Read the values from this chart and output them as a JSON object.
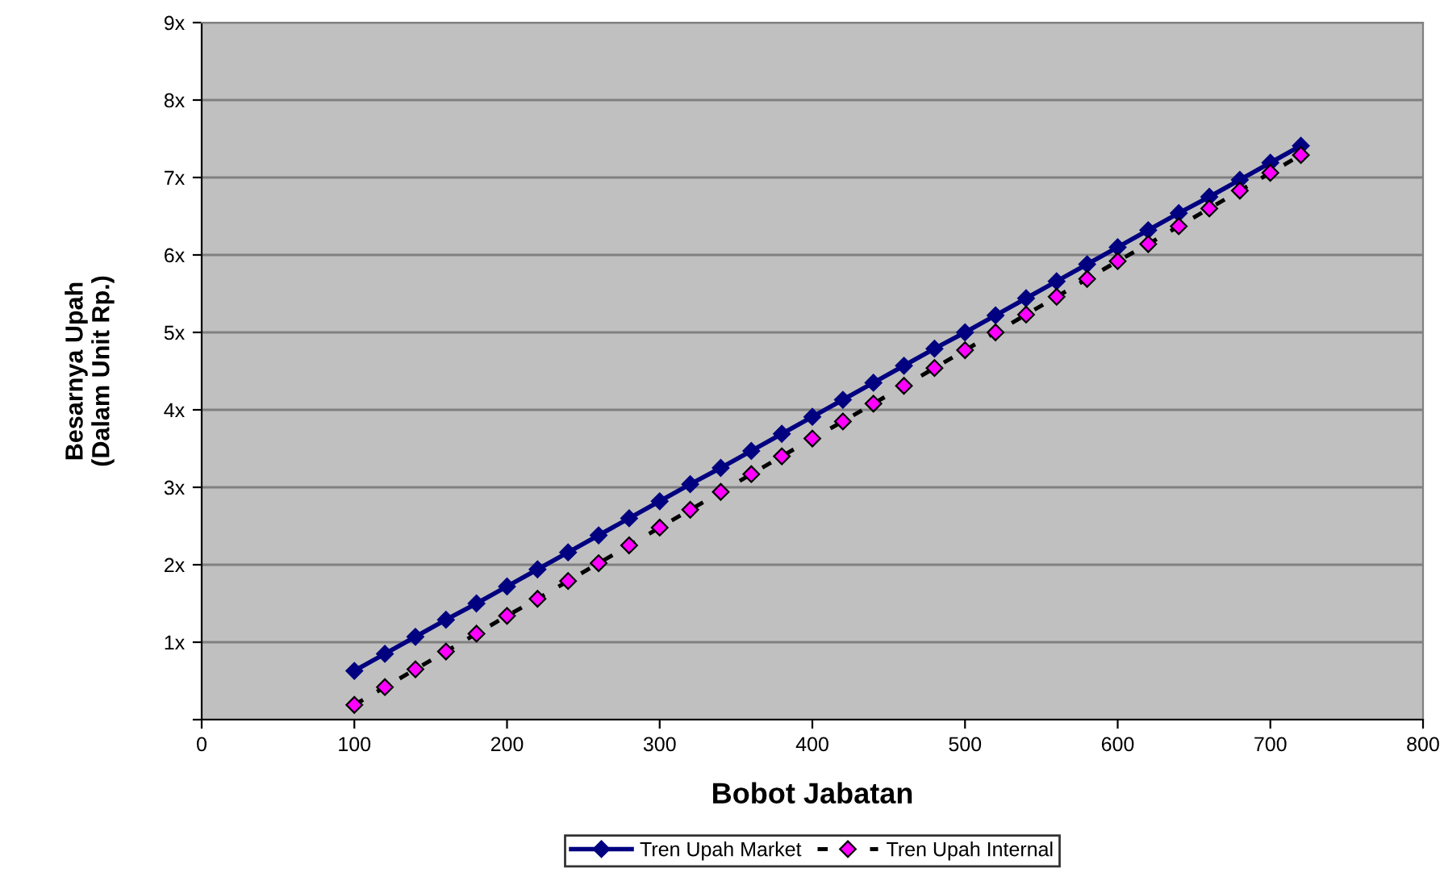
{
  "chart_data": {
    "type": "line",
    "xlabel": "Bobot Jabatan",
    "ylabel": "Besarnya Upah\n(Dalam Unit Rp.)",
    "x": [
      100,
      120,
      140,
      160,
      180,
      200,
      220,
      240,
      260,
      280,
      300,
      320,
      340,
      360,
      380,
      400,
      420,
      440,
      460,
      480,
      500,
      520,
      540,
      560,
      580,
      600,
      620,
      640,
      660,
      680,
      700,
      720
    ],
    "series": [
      {
        "name": "Tren Upah Market",
        "color": "#000080",
        "marker": "diamond",
        "line_style": "solid",
        "values": [
          0.63,
          0.85,
          1.07,
          1.29,
          1.5,
          1.72,
          1.94,
          2.16,
          2.38,
          2.6,
          2.82,
          3.04,
          3.25,
          3.47,
          3.69,
          3.91,
          4.13,
          4.35,
          4.57,
          4.79,
          5.0,
          5.22,
          5.44,
          5.66,
          5.88,
          6.1,
          6.32,
          6.54,
          6.75,
          6.97,
          7.19,
          7.41
        ]
      },
      {
        "name": "Tren Upah Internal",
        "color": "#ff00ff",
        "marker": "diamond",
        "line_style": "dashed",
        "values": [
          0.19,
          0.42,
          0.65,
          0.88,
          1.11,
          1.34,
          1.56,
          1.79,
          2.02,
          2.25,
          2.48,
          2.71,
          2.94,
          3.17,
          3.4,
          3.63,
          3.85,
          4.08,
          4.31,
          4.54,
          4.77,
          5.0,
          5.23,
          5.46,
          5.69,
          5.92,
          6.14,
          6.37,
          6.6,
          6.83,
          7.06,
          7.29
        ]
      }
    ],
    "xlim": [
      0,
      800
    ],
    "xticks": [
      0,
      100,
      200,
      300,
      400,
      500,
      600,
      700,
      800
    ],
    "ylim": [
      0,
      9
    ],
    "yticks": [
      {
        "value": 0,
        "label": null
      },
      {
        "value": 1,
        "label": "1x"
      },
      {
        "value": 2,
        "label": "2x"
      },
      {
        "value": 3,
        "label": "3x"
      },
      {
        "value": 4,
        "label": "4x"
      },
      {
        "value": 5,
        "label": "5x"
      },
      {
        "value": 6,
        "label": "6x"
      },
      {
        "value": 7,
        "label": "7x"
      },
      {
        "value": 8,
        "label": "8x"
      },
      {
        "value": 9,
        "label": "9x"
      }
    ],
    "grid": "y",
    "legend": "bottom"
  }
}
